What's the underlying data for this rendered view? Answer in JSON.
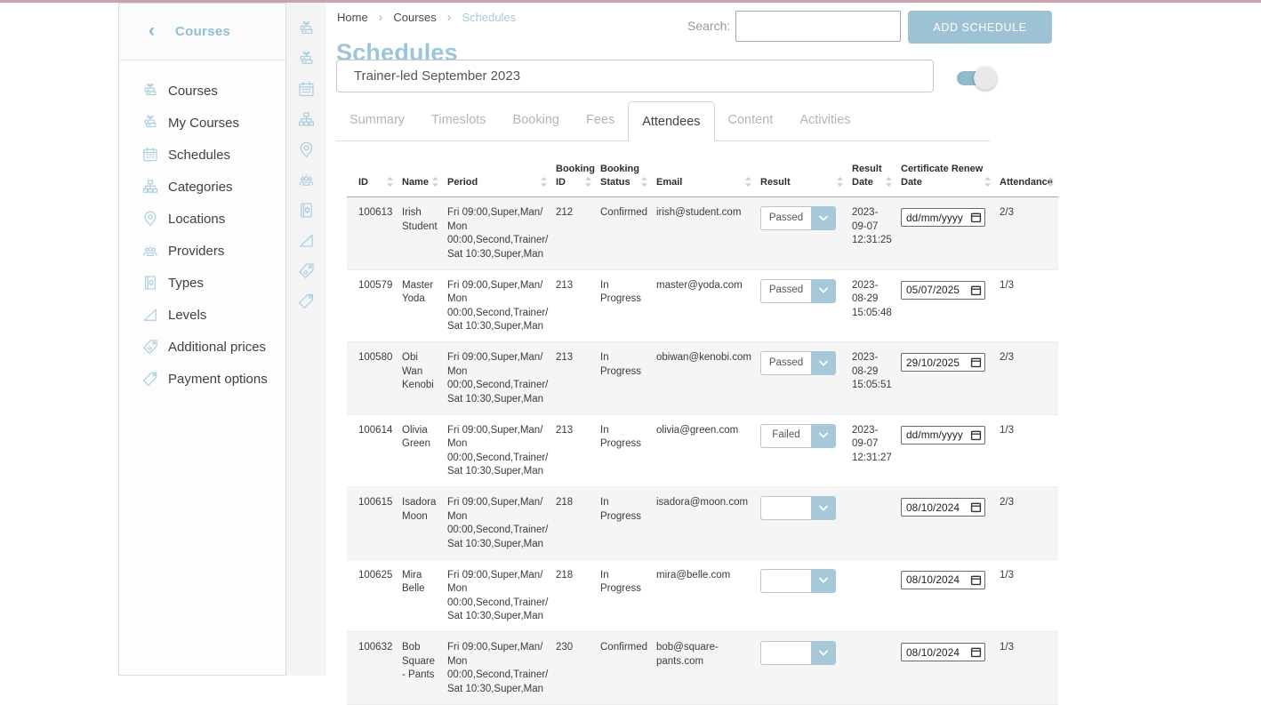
{
  "colors": {
    "accent_blue": "#9cc3d5",
    "icon_blue": "#a9cedd",
    "topline_pink": "#c9a4af",
    "row_stripe": "#f5f5f5",
    "button_blue": "#9dc2d4"
  },
  "sidebar": {
    "title": "Courses",
    "items": [
      {
        "label": "Courses",
        "icon": "courses-icon"
      },
      {
        "label": "My Courses",
        "icon": "my-courses-icon"
      },
      {
        "label": "Schedules",
        "icon": "schedules-icon"
      },
      {
        "label": "Categories",
        "icon": "categories-icon"
      },
      {
        "label": "Locations",
        "icon": "locations-icon"
      },
      {
        "label": "Providers",
        "icon": "providers-icon"
      },
      {
        "label": "Types",
        "icon": "types-icon"
      },
      {
        "label": "Levels",
        "icon": "levels-icon"
      },
      {
        "label": "Additional prices",
        "icon": "additional-prices-icon"
      },
      {
        "label": "Payment options",
        "icon": "payment-options-icon"
      }
    ]
  },
  "icon_strip": [
    "courses-icon",
    "my-courses-icon",
    "schedules-icon",
    "categories-icon",
    "locations-icon",
    "providers-icon",
    "types-icon",
    "levels-icon",
    "additional-prices-icon",
    "payment-options-icon"
  ],
  "breadcrumb": {
    "items": [
      "Home",
      "Courses",
      "Schedules"
    ],
    "separator": "›"
  },
  "page": {
    "title": "Schedules"
  },
  "search": {
    "label": "Search:",
    "value": ""
  },
  "actions": {
    "add_schedule_label": "ADD SCHEDULE"
  },
  "schedule": {
    "name": "Trainer-led September 2023",
    "toggle_on": true
  },
  "tabs": [
    {
      "label": "Summary",
      "active": false
    },
    {
      "label": "Timeslots",
      "active": false
    },
    {
      "label": "Booking",
      "active": false
    },
    {
      "label": "Fees",
      "active": false
    },
    {
      "label": "Attendees",
      "active": true
    },
    {
      "label": "Content",
      "active": false
    },
    {
      "label": "Activities",
      "active": false
    }
  ],
  "table": {
    "columns": [
      "ID",
      "Name",
      "Period",
      "Booking ID",
      "Booking Status",
      "Email",
      "Result",
      "Result Date",
      "Certificate Renew Date",
      "Attendance"
    ],
    "date_placeholder": "dd/mm/yyyy",
    "rows": [
      {
        "id": "100613",
        "name": "Irish Student",
        "period": "Fri 09:00,Super,Man/\nMon\n00:00,Second,Trainer/\nSat 10:30,Super,Man",
        "booking_id": "212",
        "booking_status": "Confirmed",
        "email": "irish@student.com",
        "result": "Passed",
        "result_date": "2023-\n09-07\n12:31:25",
        "certificate_renew_date": "",
        "attendance": "2/3"
      },
      {
        "id": "100579",
        "name": "Master Yoda",
        "period": "Fri 09:00,Super,Man/\nMon\n00:00,Second,Trainer/\nSat 10:30,Super,Man",
        "booking_id": "213",
        "booking_status": "In Progress",
        "email": "master@yoda.com",
        "result": "Passed",
        "result_date": "2023-\n08-29\n15:05:48",
        "certificate_renew_date": "05/07/2025",
        "attendance": "1/3"
      },
      {
        "id": "100580",
        "name": "Obi Wan Kenobi",
        "period": "Fri 09:00,Super,Man/\nMon\n00:00,Second,Trainer/\nSat 10:30,Super,Man",
        "booking_id": "213",
        "booking_status": "In Progress",
        "email": "obiwan@kenobi.com",
        "result": "Passed",
        "result_date": "2023-\n08-29\n15:05:51",
        "certificate_renew_date": "29/10/2025",
        "attendance": "2/3"
      },
      {
        "id": "100614",
        "name": "Olivia Green",
        "period": "Fri 09:00,Super,Man/\nMon\n00:00,Second,Trainer/\nSat 10:30,Super,Man",
        "booking_id": "213",
        "booking_status": "In Progress",
        "email": "olivia@green.com",
        "result": "Failed",
        "result_date": "2023-\n09-07\n12:31:27",
        "certificate_renew_date": "",
        "attendance": "1/3"
      },
      {
        "id": "100615",
        "name": "Isadora Moon",
        "period": "Fri 09:00,Super,Man/\nMon\n00:00,Second,Trainer/\nSat 10:30,Super,Man",
        "booking_id": "218",
        "booking_status": "In Progress",
        "email": "isadora@moon.com",
        "result": "",
        "result_date": "",
        "certificate_renew_date": "08/10/2024",
        "attendance": "2/3"
      },
      {
        "id": "100625",
        "name": "Mira Belle",
        "period": "Fri 09:00,Super,Man/\nMon\n00:00,Second,Trainer/\nSat 10:30,Super,Man",
        "booking_id": "218",
        "booking_status": "In Progress",
        "email": "mira@belle.com",
        "result": "",
        "result_date": "",
        "certificate_renew_date": "08/10/2024",
        "attendance": "1/3"
      },
      {
        "id": "100632",
        "name": "Bob Square - Pants",
        "period": "Fri 09:00,Super,Man/\nMon\n00:00,Second,Trainer/\nSat 10:30,Super,Man",
        "booking_id": "230",
        "booking_status": "Confirmed",
        "email": "bob@square-pants.com",
        "result": "",
        "result_date": "",
        "certificate_renew_date": "08/10/2024",
        "attendance": "1/3"
      }
    ]
  }
}
